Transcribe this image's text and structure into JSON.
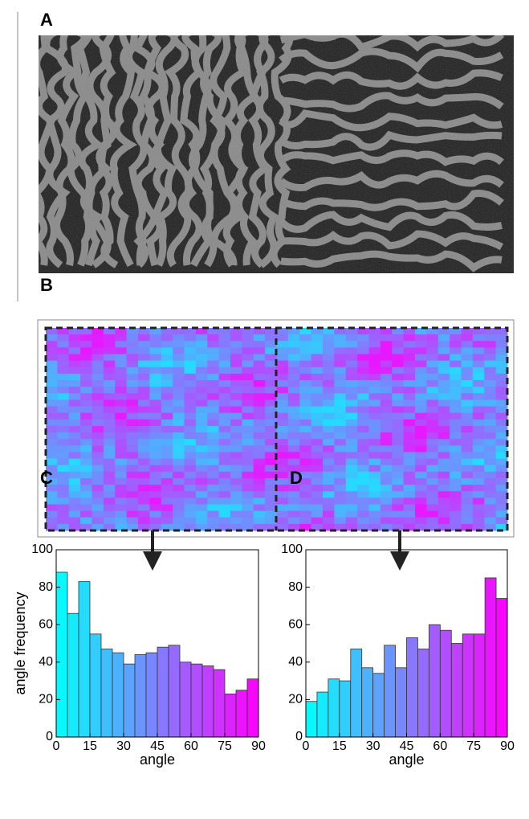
{
  "figure": {
    "labels": [
      "A",
      "B"
    ]
  },
  "chart_data": [
    {
      "type": "histogram",
      "label": "C",
      "xlabel": "angle",
      "ylabel": "angle frequency",
      "bins": [
        0,
        5,
        10,
        15,
        20,
        25,
        30,
        35,
        40,
        45,
        50,
        55,
        60,
        65,
        70,
        75,
        80,
        85,
        90
      ],
      "values": [
        88,
        66,
        83,
        55,
        47,
        45,
        39,
        44,
        45,
        48,
        49,
        40,
        39,
        38,
        36,
        23,
        25,
        31
      ],
      "colormap": [
        "#00ffff",
        "#ff00ff"
      ],
      "xlim": [
        0,
        90
      ],
      "xticks": [
        0,
        15,
        30,
        45,
        60,
        75,
        90
      ],
      "ylim": [
        0,
        100
      ],
      "yticks": [
        0,
        20,
        40,
        60,
        80,
        100
      ]
    },
    {
      "type": "histogram",
      "label": "D",
      "xlabel": "angle",
      "bins": [
        0,
        5,
        10,
        15,
        20,
        25,
        30,
        35,
        40,
        45,
        50,
        55,
        60,
        65,
        70,
        75,
        80,
        85,
        90
      ],
      "values": [
        19,
        24,
        31,
        30,
        47,
        37,
        34,
        49,
        37,
        53,
        47,
        60,
        57,
        50,
        55,
        55,
        85,
        74
      ],
      "colormap": [
        "#00ffff",
        "#ff00ff"
      ],
      "xlim": [
        0,
        90
      ],
      "xticks": [
        0,
        15,
        30,
        45,
        60,
        75,
        90
      ],
      "ylim": [
        0,
        100
      ],
      "yticks": [
        0,
        20,
        40,
        60,
        80,
        100
      ]
    }
  ]
}
